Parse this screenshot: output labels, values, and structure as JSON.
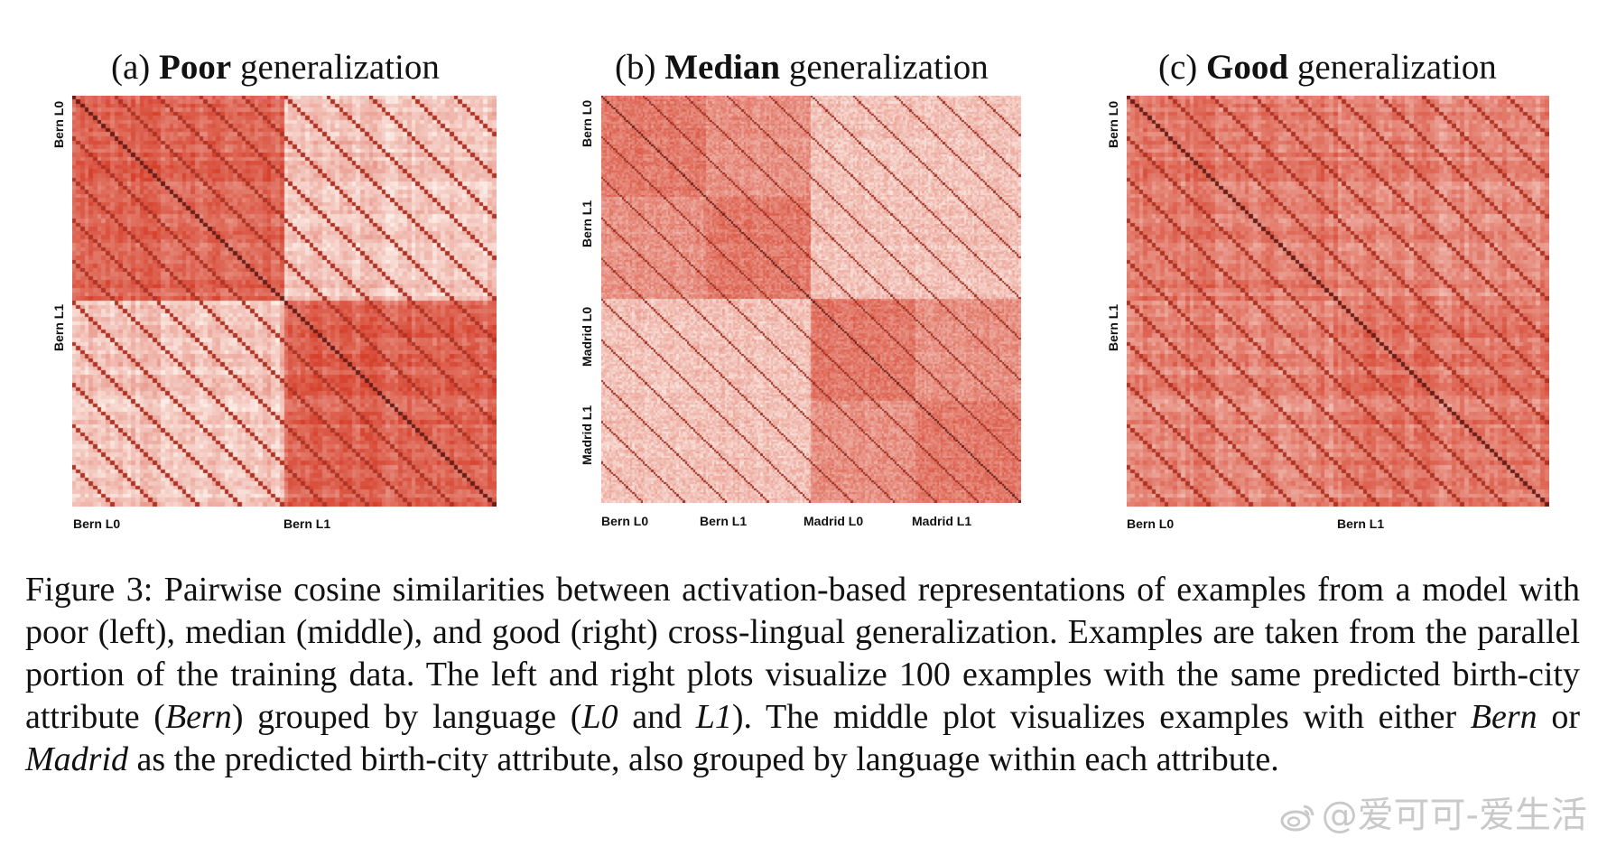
{
  "figure": {
    "colors": {
      "low": "#fbece6",
      "high": "#d6402c",
      "diag": "#6a1e18"
    },
    "panels": [
      {
        "title_prefix": "(a) ",
        "title_bold": "Poor",
        "title_suffix": " generalization",
        "ylabels": [
          "Bern L0",
          "Bern L1"
        ],
        "xlabels": [
          "Bern L0",
          "Bern L1"
        ]
      },
      {
        "title_prefix": "(b) ",
        "title_bold": "Median",
        "title_suffix": " generalization",
        "ylabels": [
          "Bern L0",
          "Bern L1",
          "Madrid L0",
          "Madrid L1"
        ],
        "xlabels": [
          "Bern L0",
          "Bern L1",
          "Madrid L0",
          "Madrid L1"
        ]
      },
      {
        "title_prefix": "(c) ",
        "title_bold": "Good",
        "title_suffix": " generalization",
        "ylabels": [
          "Bern L0",
          "Bern L1"
        ],
        "xlabels": [
          "Bern L0",
          "Bern L1"
        ]
      }
    ]
  },
  "caption": {
    "label": "Figure 3:",
    "part1": " Pairwise cosine similarities between activation-based representations of examples from a model with poor (left), median (middle), and good (right) cross-lingual generalization. Examples are taken from the parallel portion of the training data. The left and right plots visualize 100 examples with the same predicted birth-city attribute (",
    "bern1": "Bern",
    "part2": ") grouped by language (",
    "l0": "L0",
    "and": " and ",
    "l1": "L1",
    "part3": "). The middle plot visualizes examples with either ",
    "bern2": "Bern",
    "or": " or ",
    "madrid": "Madrid",
    "part4": " as the predicted birth-city attribute, also grouped by language within each attribute."
  },
  "watermark": "@爱可可-爱生活"
}
